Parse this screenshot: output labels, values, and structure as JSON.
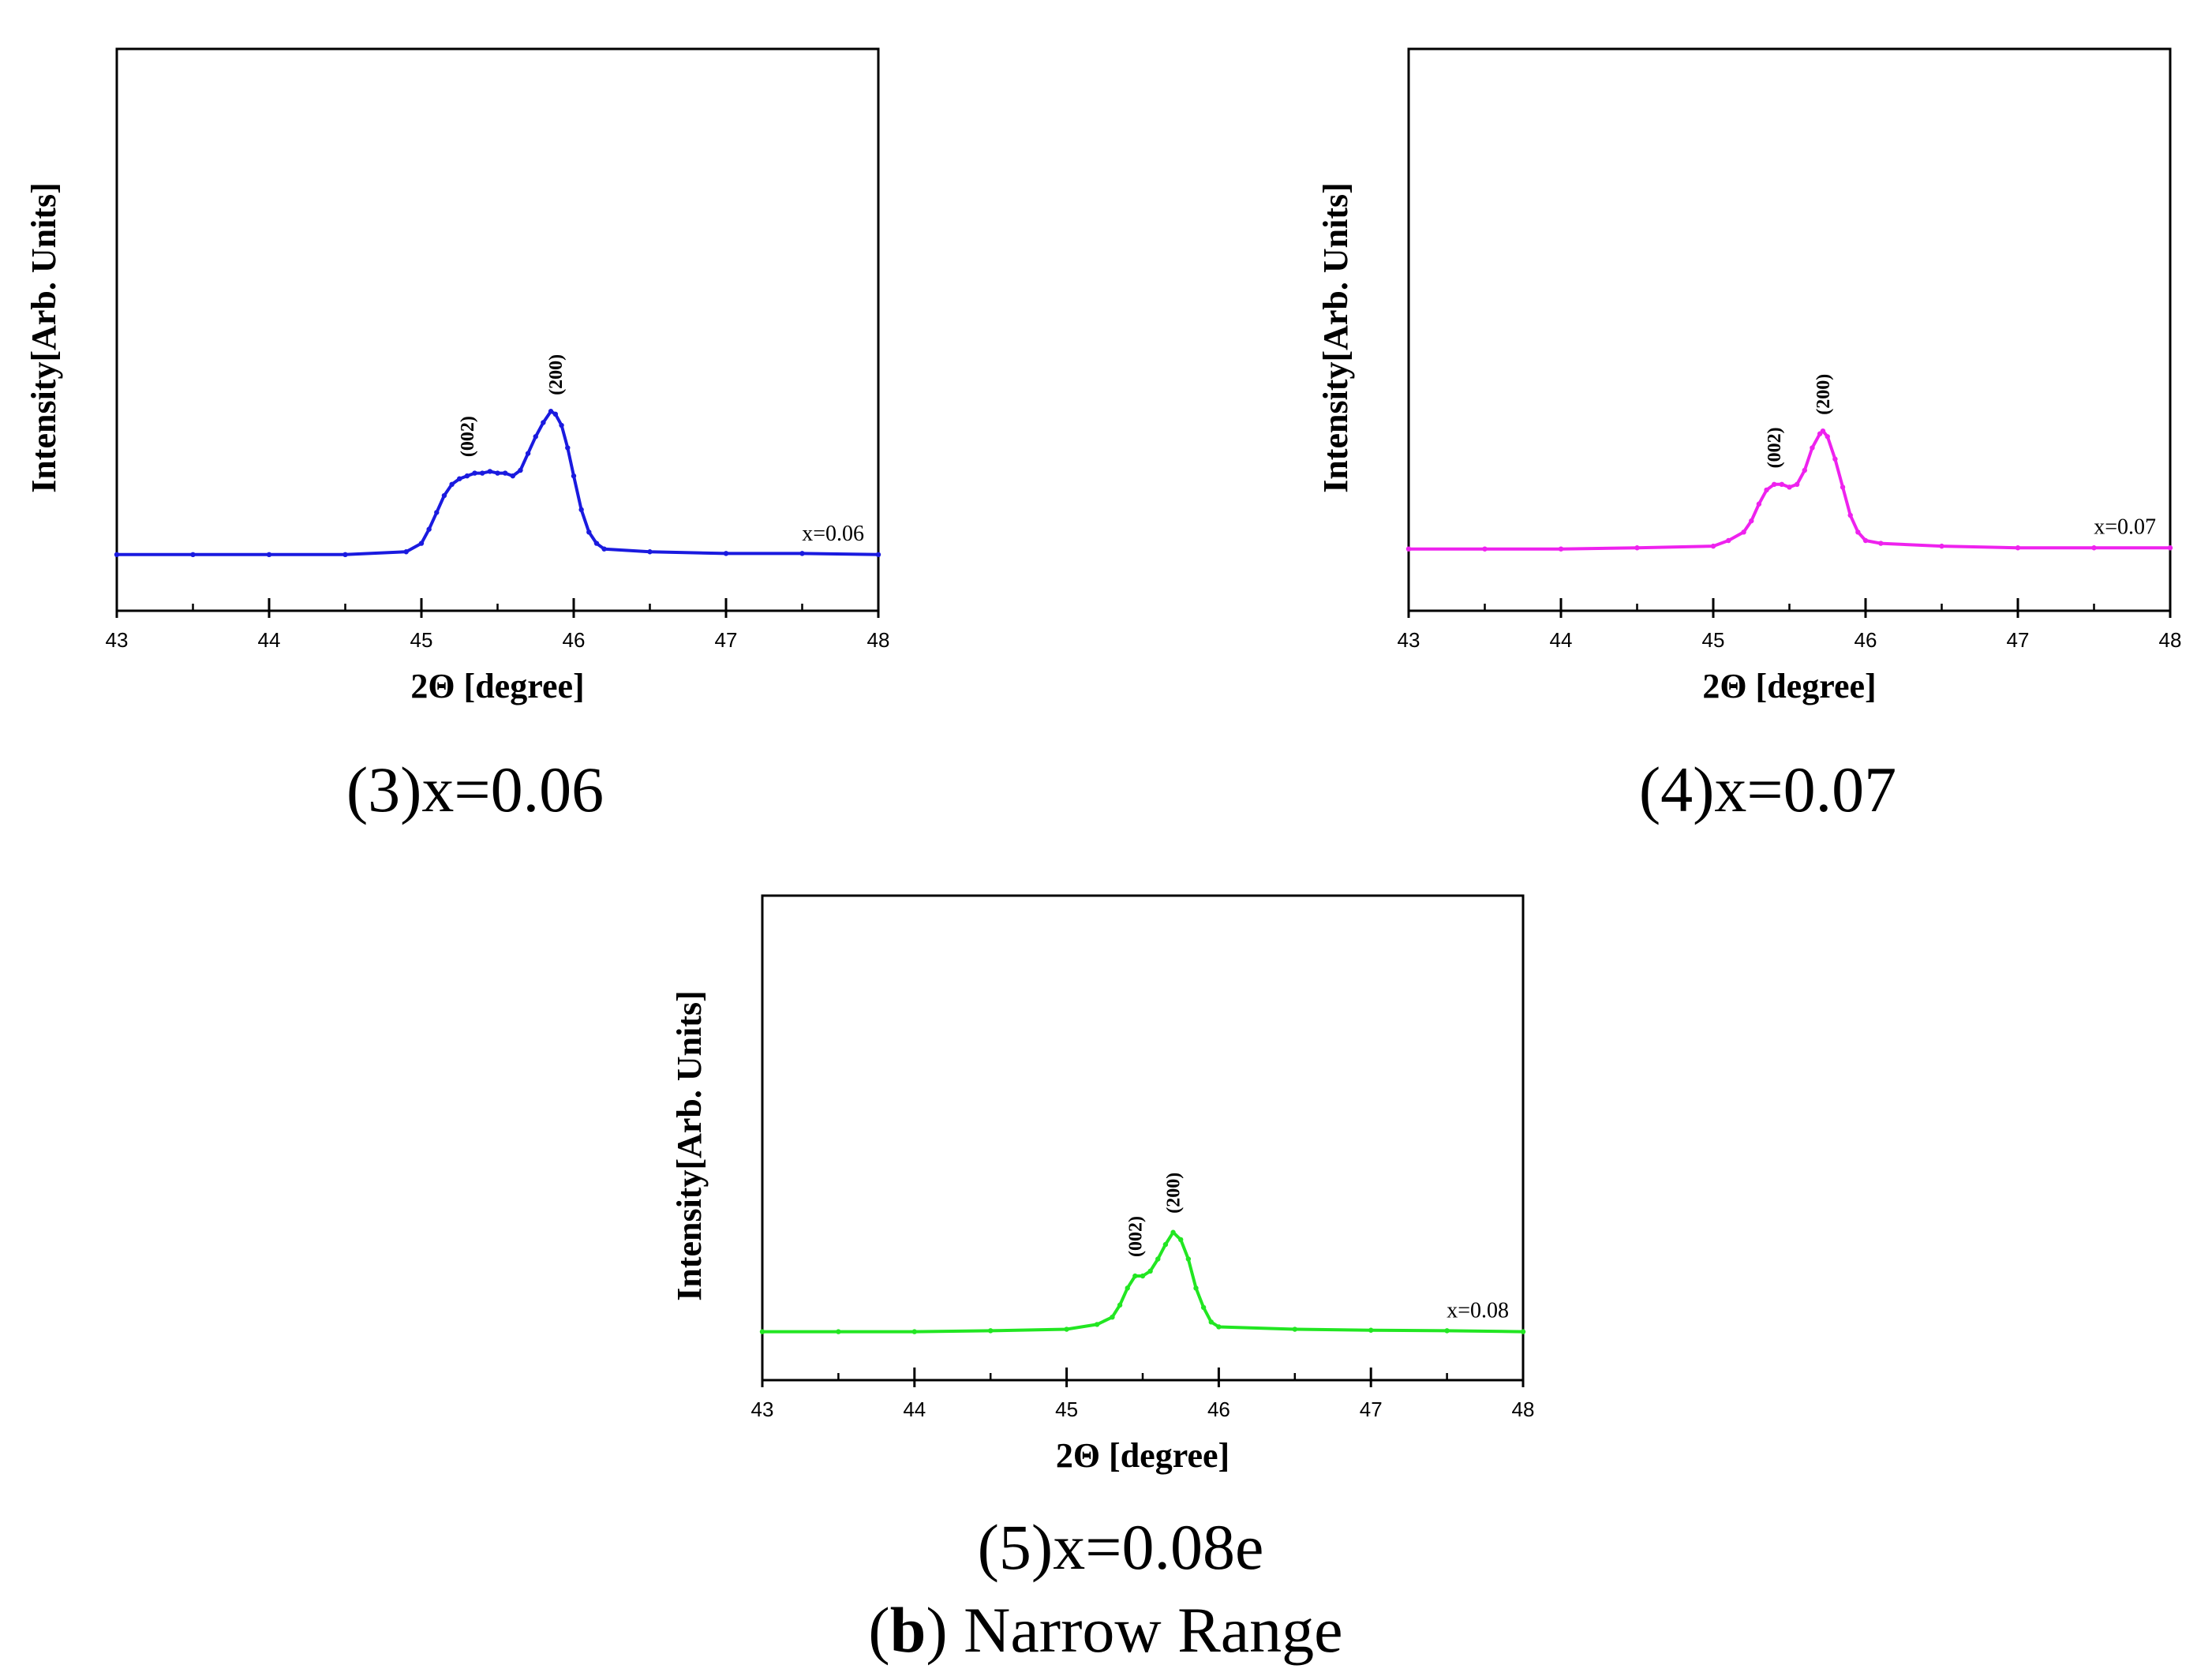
{
  "figure": {
    "caption_part_letter": "b",
    "caption_paren_open": "(",
    "caption_paren_close": ")",
    "caption_text": " Narrow Range"
  },
  "chart_data": [
    {
      "type": "line",
      "panel_caption": "(3)x=0.06",
      "xlabel": "2Θ [degree]",
      "ylabel": "Intensity[Arb. Units]",
      "xlim": [
        43,
        48
      ],
      "ylim": [
        0,
        100
      ],
      "xticks": [
        43,
        44,
        45,
        46,
        47,
        48
      ],
      "xtick_labels": [
        "43",
        "44",
        "45",
        "46",
        "47",
        "48"
      ],
      "legend": "x=0.06",
      "legend_position": "right",
      "color": "#1a1adf",
      "series": [
        {
          "name": "x=0.06",
          "x": [
            43.0,
            43.5,
            44.0,
            44.5,
            44.9,
            45.0,
            45.05,
            45.1,
            45.15,
            45.2,
            45.25,
            45.3,
            45.35,
            45.4,
            45.45,
            45.5,
            45.55,
            45.6,
            45.65,
            45.7,
            45.75,
            45.8,
            45.85,
            45.88,
            45.92,
            45.96,
            46.0,
            46.05,
            46.1,
            46.15,
            46.2,
            46.5,
            47.0,
            47.5,
            48.0
          ],
          "y": [
            10,
            10,
            10,
            10,
            10.5,
            12,
            14.5,
            17.5,
            20.5,
            22.5,
            23.5,
            24,
            24.5,
            24.5,
            24.8,
            24.5,
            24.5,
            24,
            25,
            28,
            31,
            33.5,
            35.5,
            35,
            33,
            29,
            24,
            18,
            14,
            12,
            11,
            10.5,
            10.2,
            10.2,
            10
          ]
        }
      ],
      "annotations": [
        {
          "text": "(002)",
          "x": 45.3,
          "y": 24
        },
        {
          "text": "(200)",
          "x": 45.88,
          "y": 35
        }
      ]
    },
    {
      "type": "line",
      "panel_caption": "(4)x=0.07",
      "xlabel": "2Θ [degree]",
      "ylabel": "Intensity[Arb. Units]",
      "xlim": [
        43,
        48
      ],
      "ylim": [
        0,
        100
      ],
      "xticks": [
        43,
        44,
        45,
        46,
        47,
        48
      ],
      "xtick_labels": [
        "43",
        "44",
        "45",
        "46",
        "47",
        "48"
      ],
      "legend": "x=0.07",
      "legend_position": "right",
      "color": "#ee22ee",
      "series": [
        {
          "name": "x=0.07",
          "x": [
            43.0,
            43.5,
            44.0,
            44.5,
            45.0,
            45.1,
            45.2,
            45.25,
            45.3,
            45.35,
            45.4,
            45.45,
            45.5,
            45.55,
            45.6,
            45.65,
            45.7,
            45.72,
            45.75,
            45.8,
            45.85,
            45.9,
            45.95,
            46.0,
            46.1,
            46.5,
            47.0,
            47.5,
            48.0
          ],
          "y": [
            11,
            11,
            11,
            11.2,
            11.5,
            12.5,
            14,
            16,
            19,
            21.5,
            22.5,
            22.5,
            22,
            22.5,
            25,
            29,
            31.5,
            32,
            31,
            27,
            22,
            17,
            14,
            12.5,
            12,
            11.5,
            11.2,
            11.2,
            11.2
          ]
        }
      ],
      "annotations": [
        {
          "text": "(002)",
          "x": 45.4,
          "y": 22
        },
        {
          "text": "(200)",
          "x": 45.72,
          "y": 31.5
        }
      ]
    },
    {
      "type": "line",
      "panel_caption": "(5)x=0.08e",
      "xlabel": "2Θ [degree]",
      "ylabel": "Intensity[Arb. Units]",
      "xlim": [
        43,
        48
      ],
      "ylim": [
        0,
        100
      ],
      "xticks": [
        43,
        44,
        45,
        46,
        47,
        48
      ],
      "xtick_labels": [
        "43",
        "44",
        "45",
        "46",
        "47",
        "48"
      ],
      "legend": "x=0.08",
      "legend_position": "right",
      "color": "#22e622",
      "series": [
        {
          "name": "x=0.08",
          "x": [
            43.0,
            43.5,
            44.0,
            44.5,
            45.0,
            45.2,
            45.3,
            45.35,
            45.4,
            45.45,
            45.5,
            45.55,
            45.6,
            45.65,
            45.7,
            45.75,
            45.8,
            45.85,
            45.9,
            45.95,
            46.0,
            46.5,
            47.0,
            47.5,
            48.0
          ],
          "y": [
            10,
            10,
            10,
            10.2,
            10.5,
            11.5,
            13,
            15.5,
            19,
            21.5,
            21.5,
            22.5,
            25,
            28,
            30.5,
            29,
            25,
            19,
            15,
            12,
            11,
            10.5,
            10.3,
            10.2,
            10
          ]
        }
      ],
      "annotations": [
        {
          "text": "(002)",
          "x": 45.45,
          "y": 21.5
        },
        {
          "text": "(200)",
          "x": 45.7,
          "y": 30.5
        }
      ]
    }
  ]
}
